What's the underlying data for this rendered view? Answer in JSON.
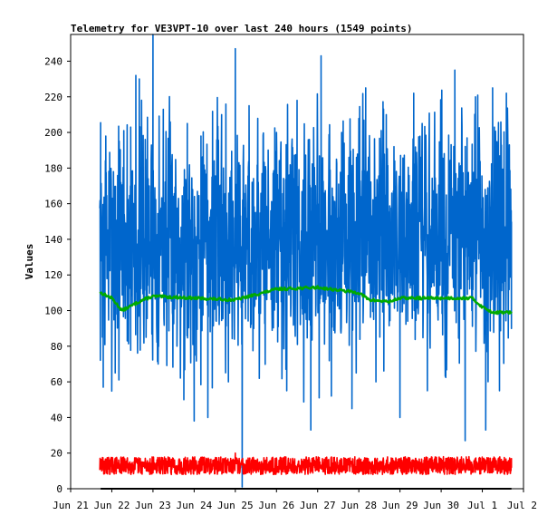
{
  "chart_data": {
    "type": "line",
    "title": "Telemetry for VE3VPT-10 over last 240 hours (1549 points)",
    "xlabel": "",
    "ylabel": "Values",
    "xlim": [
      "2024-06-21",
      "2024-07-02"
    ],
    "ylim": [
      0,
      255
    ],
    "x_ticks": [
      "Jun 21",
      "Jun 22",
      "Jun 23",
      "Jun 24",
      "Jun 25",
      "Jun 26",
      "Jun 27",
      "Jun 28",
      "Jun 29",
      "Jun 30",
      "Jul 1",
      "Jul 2"
    ],
    "y_ticks": [
      0,
      20,
      40,
      60,
      80,
      100,
      120,
      140,
      160,
      180,
      200,
      220,
      240
    ],
    "data_start": "2024-06-21T17:00",
    "data_end": "2024-07-01T17:00",
    "grid": false,
    "legend": "none",
    "series": [
      {
        "color": "#0066cc",
        "values_summary": {
          "typical_min": 40,
          "typical_max": 230,
          "mean": 125,
          "outlier_max": 255,
          "outlier_min": 1
        },
        "points": [
          [
            "2024-06-21T17:30",
            135
          ],
          [
            "2024-06-21T19:00",
            57
          ],
          [
            "2024-06-21T20:30",
            198
          ],
          [
            "2024-06-22T01:00",
            178
          ],
          [
            "2024-06-22T02:00",
            65
          ],
          [
            "2024-06-22T07:00",
            201
          ],
          [
            "2024-06-22T09:00",
            83
          ],
          [
            "2024-06-22T11:00",
            203
          ],
          [
            "2024-06-22T14:00",
            232
          ],
          [
            "2024-06-22T16:00",
            230
          ],
          [
            "2024-06-22T20:00",
            85
          ],
          [
            "2024-06-23T00:00",
            255
          ],
          [
            "2024-06-23T03:00",
            70
          ],
          [
            "2024-06-23T06:00",
            213
          ],
          [
            "2024-06-23T14:00",
            80
          ],
          [
            "2024-06-23T18:00",
            50
          ],
          [
            "2024-06-23T20:00",
            205
          ],
          [
            "2024-06-24T00:00",
            38
          ],
          [
            "2024-06-24T04:00",
            198
          ],
          [
            "2024-06-24T08:00",
            40
          ],
          [
            "2024-06-24T16:00",
            210
          ],
          [
            "2024-06-24T20:00",
            60
          ],
          [
            "2024-06-25T00:00",
            247
          ],
          [
            "2024-06-25T04:00",
            1
          ],
          [
            "2024-06-25T08:00",
            215
          ],
          [
            "2024-06-25T14:00",
            62
          ],
          [
            "2024-06-26T00:00",
            200
          ],
          [
            "2024-06-26T06:00",
            55
          ],
          [
            "2024-06-26T12:00",
            218
          ],
          [
            "2024-06-26T20:00",
            33
          ],
          [
            "2024-06-27T02:00",
            243
          ],
          [
            "2024-06-27T08:00",
            52
          ],
          [
            "2024-06-27T14:00",
            200
          ],
          [
            "2024-06-27T20:00",
            45
          ],
          [
            "2024-06-28T04:00",
            225
          ],
          [
            "2024-06-28T10:00",
            60
          ],
          [
            "2024-06-28T16:00",
            210
          ],
          [
            "2024-06-29T00:00",
            40
          ],
          [
            "2024-06-29T08:00",
            222
          ],
          [
            "2024-06-29T16:00",
            55
          ],
          [
            "2024-06-30T00:00",
            215
          ],
          [
            "2024-06-30T08:00",
            235
          ],
          [
            "2024-06-30T14:00",
            27
          ],
          [
            "2024-06-30T20:00",
            220
          ],
          [
            "2024-07-01T02:00",
            33
          ],
          [
            "2024-07-01T06:00",
            225
          ],
          [
            "2024-07-01T10:00",
            55
          ],
          [
            "2024-07-01T14:00",
            222
          ],
          [
            "2024-07-01T17:00",
            90
          ]
        ]
      },
      {
        "color": "#00aa00",
        "points": [
          [
            "2024-06-21T17:30",
            110
          ],
          [
            "2024-06-22T00:00",
            107
          ],
          [
            "2024-06-22T06:00",
            100
          ],
          [
            "2024-06-22T12:00",
            103
          ],
          [
            "2024-06-22T18:00",
            106
          ],
          [
            "2024-06-23T00:00",
            108
          ],
          [
            "2024-06-24T00:00",
            107
          ],
          [
            "2024-06-25T00:00",
            106
          ],
          [
            "2024-06-26T00:00",
            112
          ],
          [
            "2024-06-27T00:00",
            113
          ],
          [
            "2024-06-28T00:00",
            110
          ],
          [
            "2024-06-28T06:00",
            106
          ],
          [
            "2024-06-28T18:00",
            105
          ],
          [
            "2024-06-29T00:00",
            107
          ],
          [
            "2024-06-30T00:00",
            107
          ],
          [
            "2024-06-30T18:00",
            107
          ],
          [
            "2024-07-01T00:00",
            102
          ],
          [
            "2024-07-01T06:00",
            99
          ],
          [
            "2024-07-01T17:00",
            99
          ]
        ]
      },
      {
        "color": "#ff0000",
        "values_summary": {
          "typical_min": 8,
          "typical_max": 18,
          "mean": 12,
          "outlier_max": 20
        },
        "points": [
          [
            "2024-06-21T17:30",
            12
          ],
          [
            "2024-06-22T12:00",
            13
          ],
          [
            "2024-06-23T12:00",
            12
          ],
          [
            "2024-06-24T12:00",
            13
          ],
          [
            "2024-06-25T00:00",
            20
          ],
          [
            "2024-06-25T12:00",
            11
          ],
          [
            "2024-06-26T12:00",
            12
          ],
          [
            "2024-06-27T12:00",
            13
          ],
          [
            "2024-06-28T12:00",
            12
          ],
          [
            "2024-06-29T12:00",
            13
          ],
          [
            "2024-06-30T12:00",
            12
          ],
          [
            "2024-07-01T17:00",
            12
          ]
        ]
      },
      {
        "color": "#000000",
        "points": [
          [
            "2024-06-21T17:30",
            0
          ],
          [
            "2024-07-01T17:00",
            0
          ]
        ]
      }
    ]
  }
}
